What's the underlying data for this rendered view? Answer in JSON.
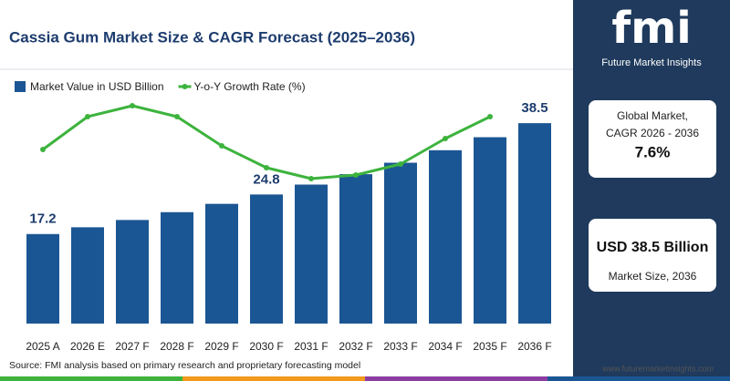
{
  "chart_data": {
    "type": "bar",
    "title": "Cassia Gum Market Size & CAGR Forecast (2025–2036)",
    "categories": [
      "2025 A",
      "2026 E",
      "2027 F",
      "2028 F",
      "2029 F",
      "2030 F",
      "2031 F",
      "2032 F",
      "2033 F",
      "2034 F",
      "2035 F",
      "2036 F"
    ],
    "series": [
      {
        "name": "Market Value in USD Billion",
        "color": "#1b5694",
        "values": [
          17.2,
          18.5,
          19.9,
          21.4,
          23.0,
          24.8,
          26.7,
          28.7,
          30.9,
          33.3,
          35.8,
          38.5
        ],
        "value_labels": [
          "17.2",
          null,
          null,
          null,
          null,
          "24.8",
          null,
          null,
          null,
          null,
          null,
          "38.5"
        ]
      },
      {
        "name": "Y-o-Y Growth Rate (%)",
        "type": "line",
        "axis": "y2",
        "color": "#3db33d",
        "values": [
          7.4,
          8.3,
          8.6,
          8.3,
          7.5,
          6.9,
          6.6,
          6.7,
          7.0,
          7.7,
          8.3,
          null
        ]
      }
    ],
    "ylim": [
      0,
      45
    ],
    "y2lim": [
      6,
      9
    ],
    "source": "Source: FMI analysis based on primary research and proprietary forecasting model"
  },
  "side_panel": {
    "logo": "fmi",
    "logo_subtitle": "Future Market Insights",
    "cagr_label_1": "Global Market,",
    "cagr_label_2": "CAGR 2026 - 2036",
    "cagr_value": "7.6%",
    "size_value": "USD 38.5 Billion",
    "size_label": "Market Size, 2036"
  },
  "website": "www.futuremarketinsights.com"
}
